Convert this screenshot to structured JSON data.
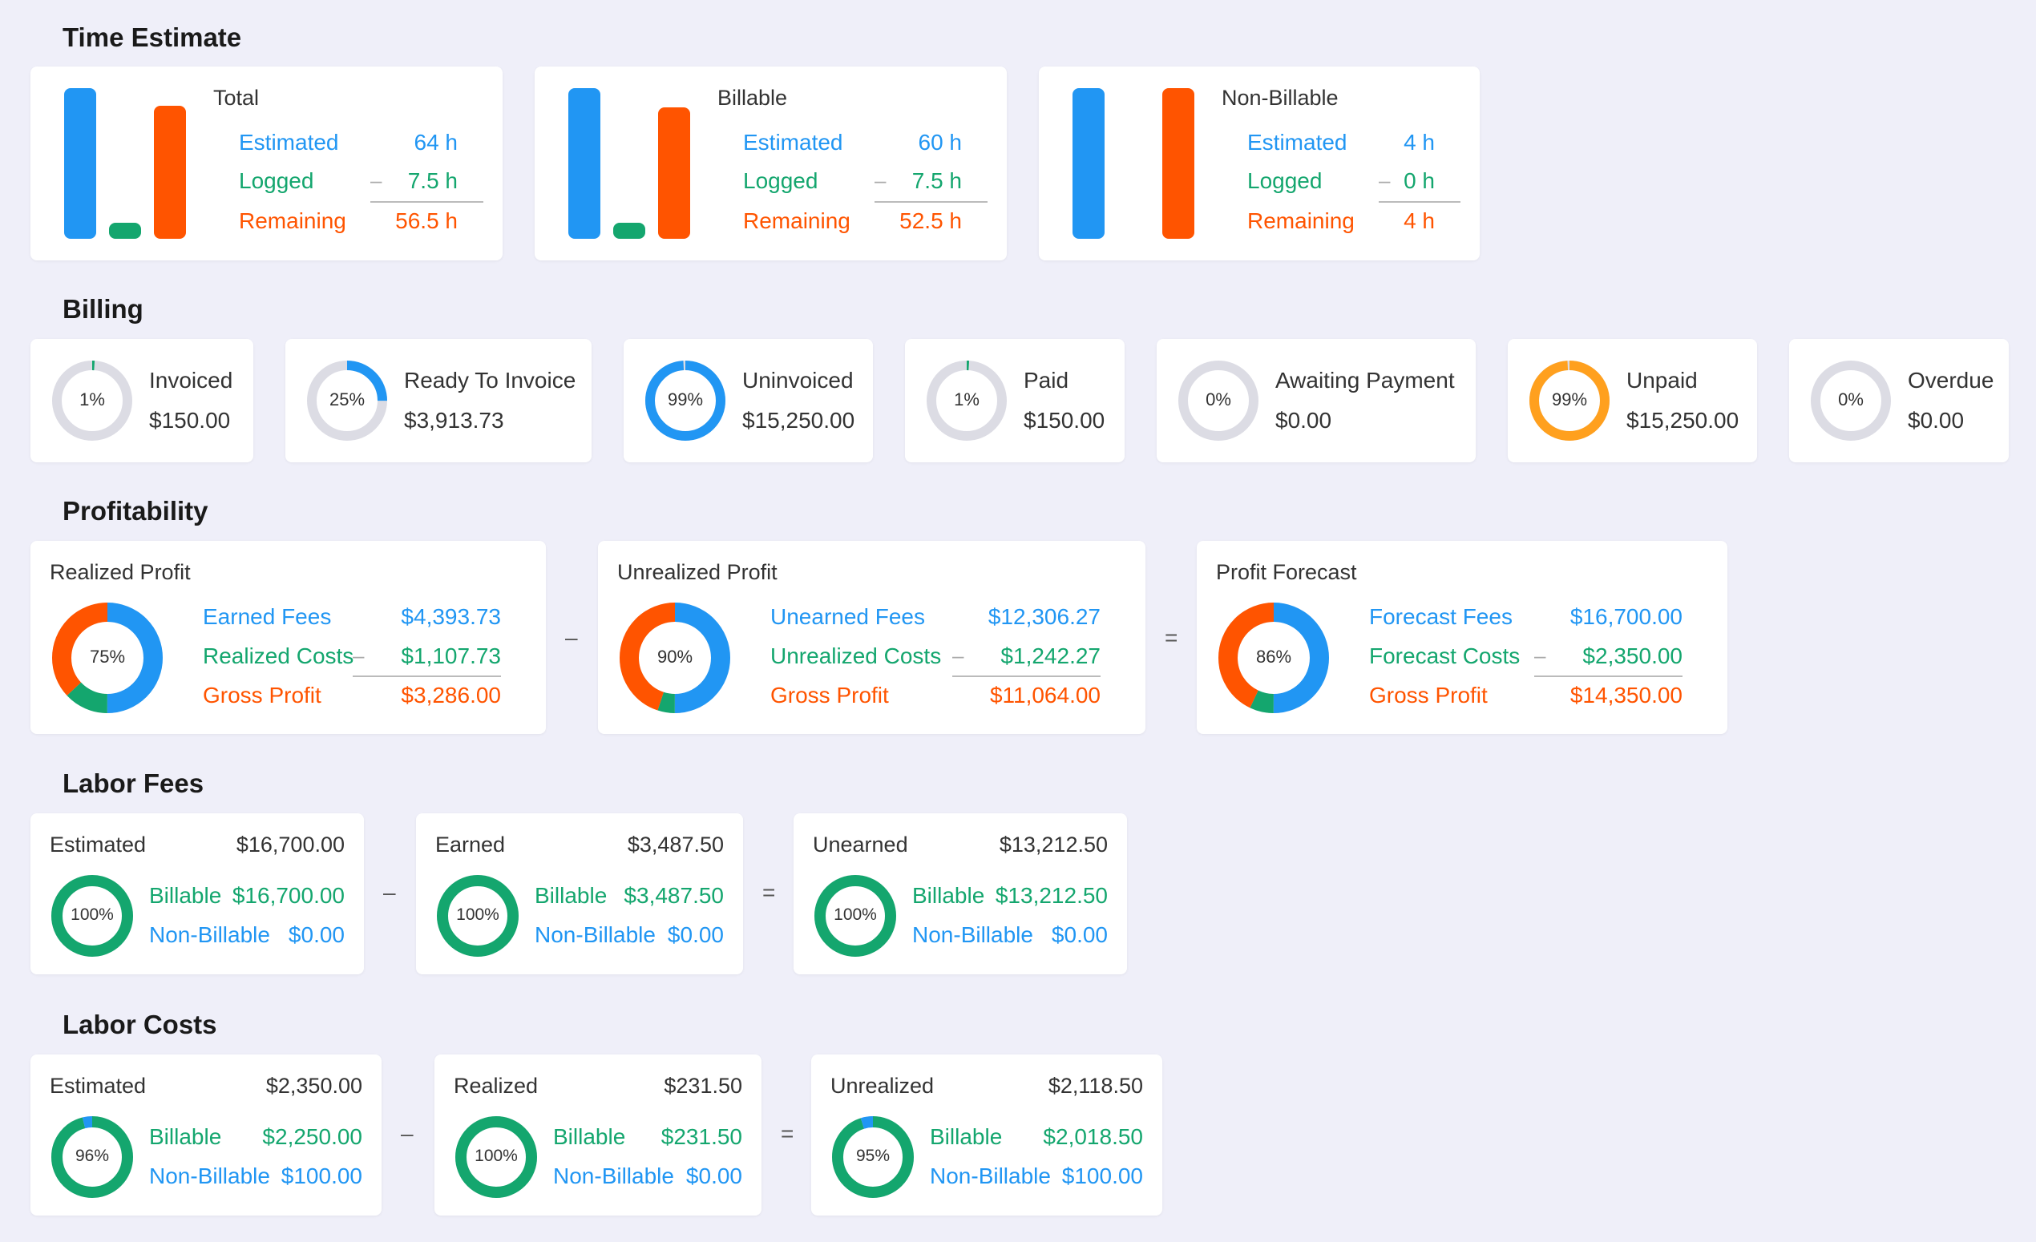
{
  "sections": {
    "time_estimate": "Time Estimate",
    "billing": "Billing",
    "profitability": "Profitability",
    "labor_fees": "Labor Fees",
    "labor_costs": "Labor Costs"
  },
  "time": {
    "total": {
      "title": "Total",
      "estimated_label": "Estimated",
      "estimated": "64 h",
      "logged_label": "Logged",
      "logged": "7.5 h",
      "remaining_label": "Remaining",
      "remaining": "56.5 h",
      "bar_estimated": 64,
      "bar_logged": 7.5,
      "bar_remaining": 56.5
    },
    "billable": {
      "title": "Billable",
      "estimated_label": "Estimated",
      "estimated": "60 h",
      "logged_label": "Logged",
      "logged": "7.5 h",
      "remaining_label": "Remaining",
      "remaining": "52.5 h",
      "bar_estimated": 60,
      "bar_logged": 7.5,
      "bar_remaining": 52.5
    },
    "nonbillable": {
      "title": "Non-Billable",
      "estimated_label": "Estimated",
      "estimated": "4 h",
      "logged_label": "Logged",
      "logged": "0 h",
      "remaining_label": "Remaining",
      "remaining": "4 h",
      "bar_estimated": 4,
      "bar_logged": 0,
      "bar_remaining": 4
    }
  },
  "billing": [
    {
      "label": "Invoiced",
      "value": "$150.00",
      "pct": "1%",
      "fraction": 0.01,
      "color": "#14a66e"
    },
    {
      "label": "Ready To Invoice",
      "value": "$3,913.73",
      "pct": "25%",
      "fraction": 0.25,
      "color": "#2196f3"
    },
    {
      "label": "Uninvoiced",
      "value": "$15,250.00",
      "pct": "99%",
      "fraction": 0.99,
      "color": "#2196f3"
    },
    {
      "label": "Paid",
      "value": "$150.00",
      "pct": "1%",
      "fraction": 0.01,
      "color": "#14a66e"
    },
    {
      "label": "Awaiting Payment",
      "value": "$0.00",
      "pct": "0%",
      "fraction": 0,
      "color": "#14a66e"
    },
    {
      "label": "Unpaid",
      "value": "$15,250.00",
      "pct": "99%",
      "fraction": 0.99,
      "color": "#ffa01e"
    },
    {
      "label": "Overdue",
      "value": "$0.00",
      "pct": "0%",
      "fraction": 0,
      "color": "#ff5400"
    }
  ],
  "profit": {
    "realized": {
      "title": "Realized Profit",
      "l1": "Earned Fees",
      "v1": "$4,393.73",
      "l2": "Realized Costs",
      "v2": "$1,107.73",
      "l3": "Gross Profit",
      "v3": "$3,286.00",
      "pct": "75%",
      "blue_fraction": 0.5,
      "green_fraction": 0.13
    },
    "unrealized": {
      "title": "Unrealized Profit",
      "l1": "Unearned Fees",
      "v1": "$12,306.27",
      "l2": "Unrealized Costs",
      "v2": "$1,242.27",
      "l3": "Gross Profit",
      "v3": "$11,064.00",
      "pct": "90%",
      "blue_fraction": 0.5,
      "green_fraction": 0.05
    },
    "forecast": {
      "title": "Profit Forecast",
      "l1": "Forecast Fees",
      "v1": "$16,700.00",
      "l2": "Forecast Costs",
      "v2": "$2,350.00",
      "l3": "Gross Profit",
      "v3": "$14,350.00",
      "pct": "86%",
      "blue_fraction": 0.5,
      "green_fraction": 0.07
    },
    "op_minus": "–",
    "op_equals": "="
  },
  "labor_fees": {
    "estimated": {
      "title": "Estimated",
      "total": "$16,700.00",
      "billable_label": "Billable",
      "billable": "$16,700.00",
      "nonbillable_label": "Non-Billable",
      "nonbillable": "$0.00",
      "pct": "100%",
      "fraction": 1.0
    },
    "earned": {
      "title": "Earned",
      "total": "$3,487.50",
      "billable_label": "Billable",
      "billable": "$3,487.50",
      "nonbillable_label": "Non-Billable",
      "nonbillable": "$0.00",
      "pct": "100%",
      "fraction": 1.0
    },
    "unearned": {
      "title": "Unearned",
      "total": "$13,212.50",
      "billable_label": "Billable",
      "billable": "$13,212.50",
      "nonbillable_label": "Non-Billable",
      "nonbillable": "$0.00",
      "pct": "100%",
      "fraction": 1.0
    },
    "op_minus": "–",
    "op_equals": "="
  },
  "labor_costs": {
    "estimated": {
      "title": "Estimated",
      "total": "$2,350.00",
      "billable_label": "Billable",
      "billable": "$2,250.00",
      "nonbillable_label": "Non-Billable",
      "nonbillable": "$100.00",
      "pct": "96%",
      "fraction": 0.96
    },
    "realized": {
      "title": "Realized",
      "total": "$231.50",
      "billable_label": "Billable",
      "billable": "$231.50",
      "nonbillable_label": "Non-Billable",
      "nonbillable": "$0.00",
      "pct": "100%",
      "fraction": 1.0
    },
    "unrealized": {
      "title": "Unrealized",
      "total": "$2,118.50",
      "billable_label": "Billable",
      "billable": "$2,018.50",
      "nonbillable_label": "Non-Billable",
      "nonbillable": "$100.00",
      "pct": "95%",
      "fraction": 0.95
    },
    "op_minus": "–",
    "op_equals": "="
  },
  "colors": {
    "blue": "#2196f3",
    "green": "#14a66e",
    "orange": "#ff5400",
    "track": "#dcdce4",
    "yellow": "#ffa01e"
  }
}
